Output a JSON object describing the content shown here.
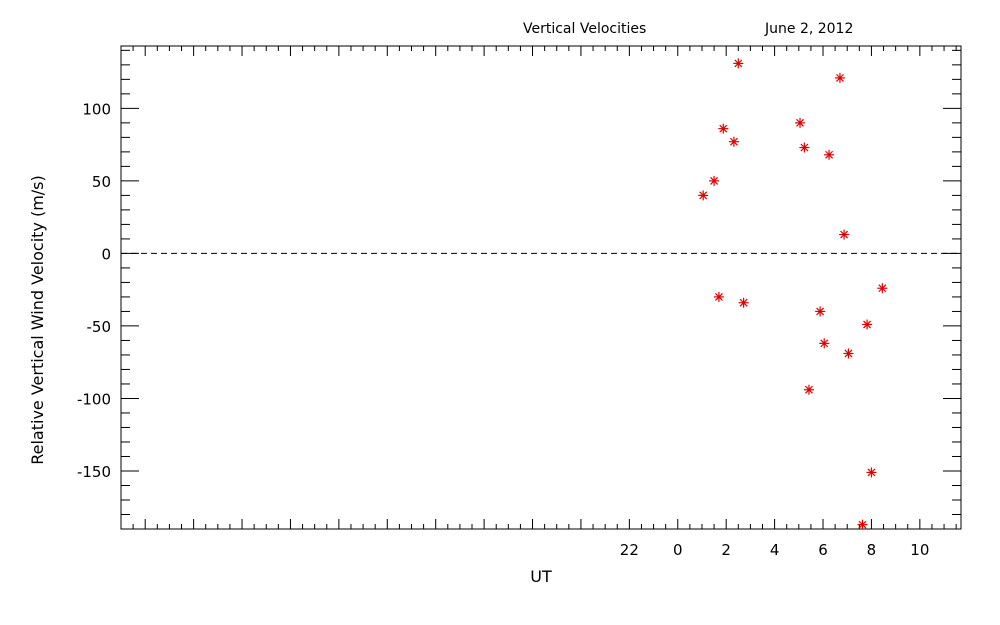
{
  "chart_data": {
    "type": "scatter",
    "title": "Vertical Velocities",
    "date": "June 2, 2012",
    "xlabel": "UT",
    "ylabel": "Relative Vertical Wind Velocity (m/s)",
    "xlim": [
      -23,
      11.7
    ],
    "ylim": [
      -190,
      143
    ],
    "x_ticks": [
      22,
      0,
      2,
      4,
      6,
      8,
      10
    ],
    "x_tick_positions": [
      -2,
      0,
      2,
      4,
      6,
      8,
      10
    ],
    "y_ticks": [
      100,
      50,
      0,
      -50,
      -100,
      -150
    ],
    "reference_line": 0,
    "marker": "asterisk",
    "marker_color": "#e00000",
    "x": [
      1.05,
      1.5,
      1.7,
      1.88,
      2.32,
      2.5,
      2.72,
      5.05,
      5.23,
      5.42,
      5.88,
      6.05,
      6.25,
      6.7,
      6.87,
      7.05,
      7.63,
      7.82,
      8.0,
      8.45
    ],
    "y": [
      40,
      50,
      -30,
      86,
      77,
      131,
      -34,
      90,
      73,
      -94,
      -40,
      -62,
      68,
      121,
      13,
      -69,
      -187,
      -49,
      -151,
      -24
    ]
  }
}
